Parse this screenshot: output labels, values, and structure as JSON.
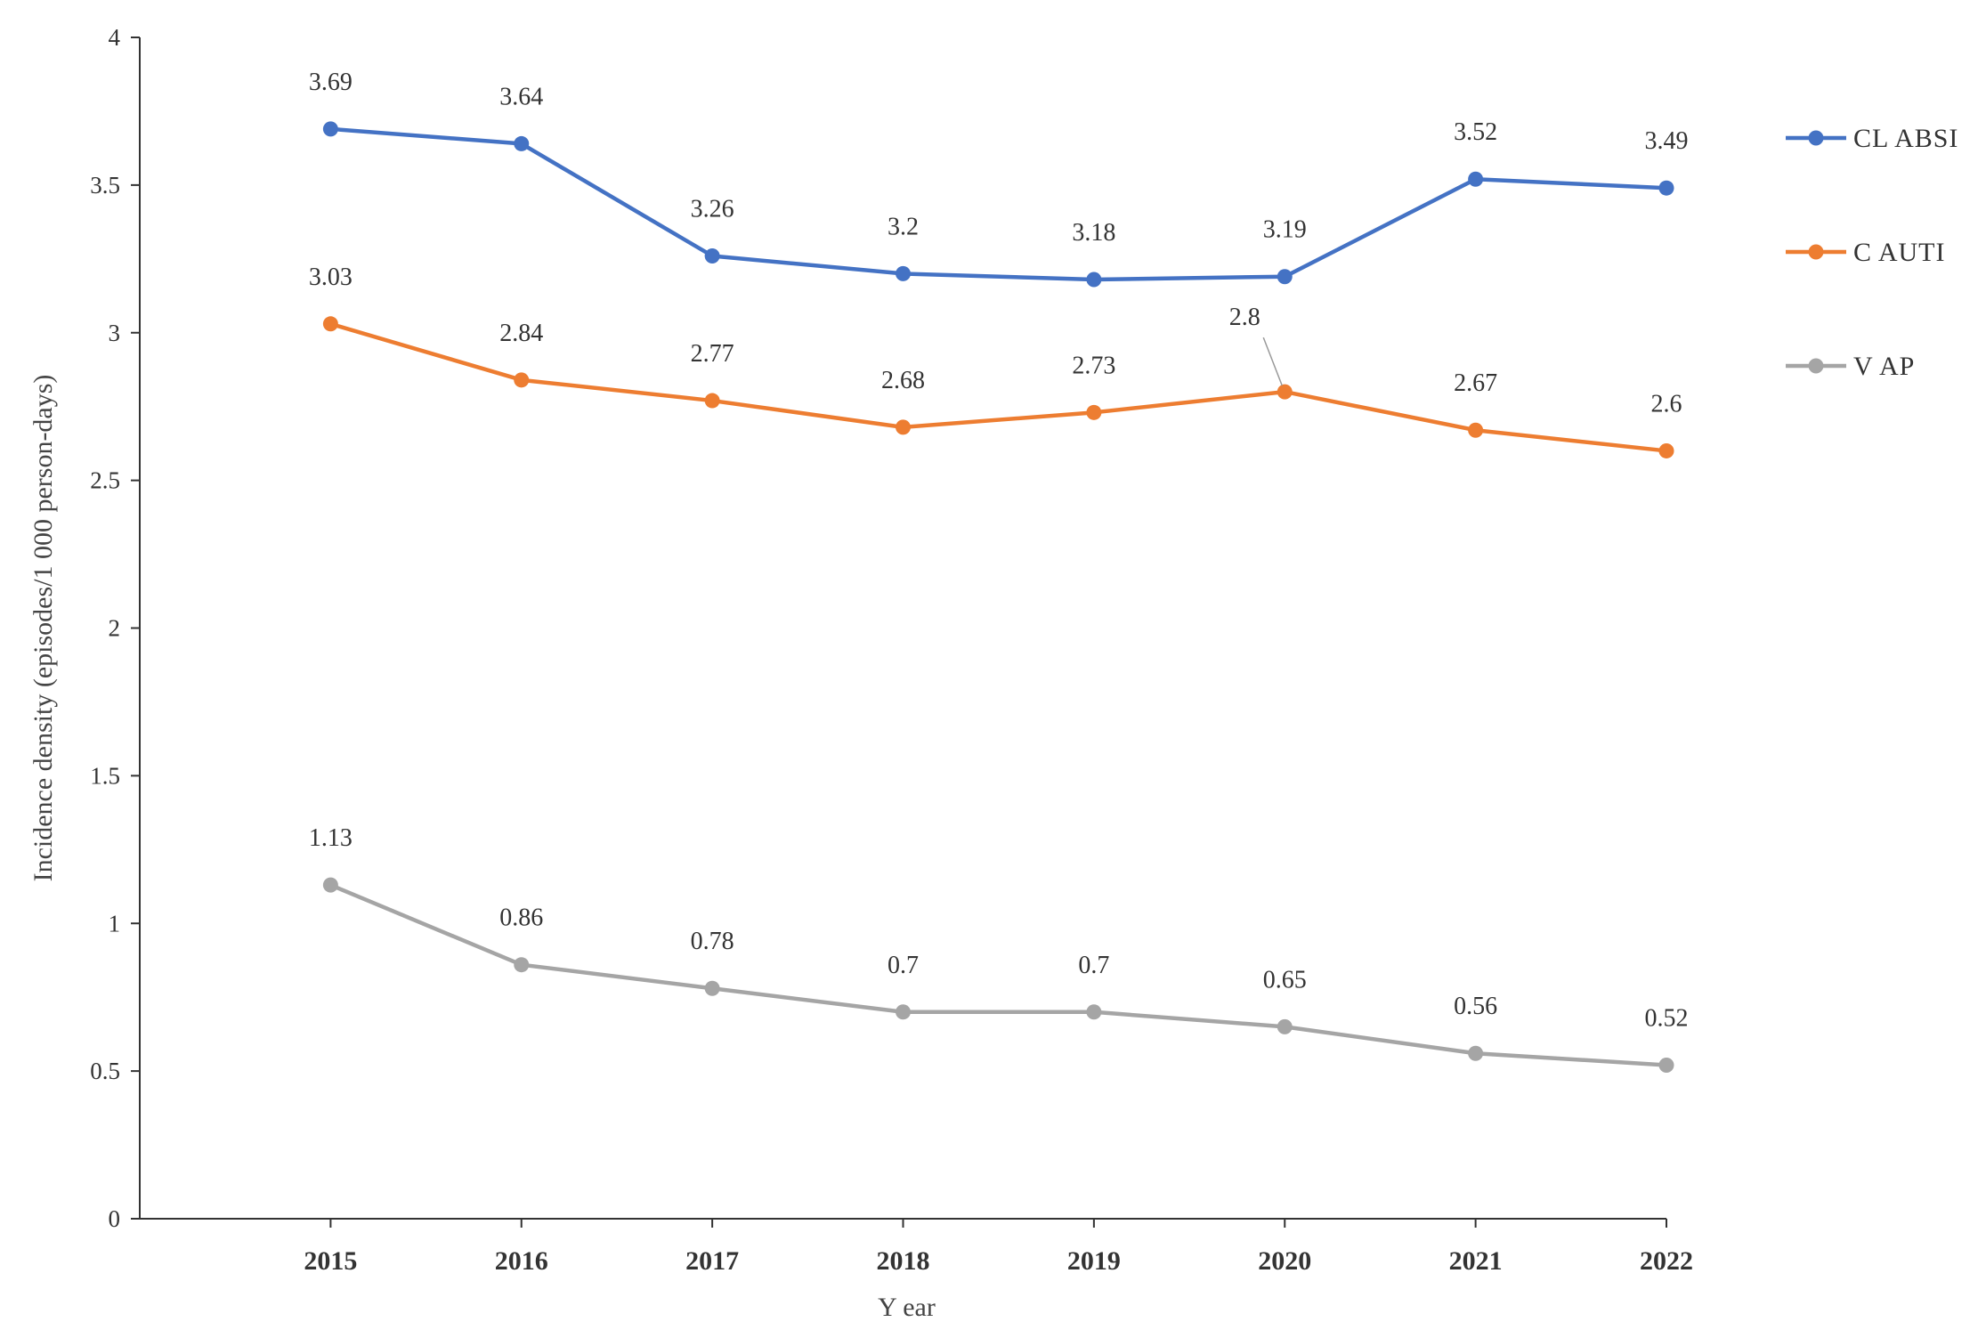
{
  "chart_data": {
    "type": "line",
    "title": "",
    "xlabel": "Y ear",
    "ylabel": "Incidence density (episodes/1 000 person-days)",
    "categories": [
      "2015",
      "2016",
      "2017",
      "2018",
      "2019",
      "2020",
      "2021",
      "2022"
    ],
    "ylim": [
      0,
      4
    ],
    "yticks": [
      0,
      0.5,
      1,
      1.5,
      2,
      2.5,
      3,
      3.5,
      4
    ],
    "ytick_labels": [
      "0",
      "0.5",
      "1",
      "1.5",
      "2",
      "2.5",
      "3",
      "3.5",
      "4"
    ],
    "grid": false,
    "legend_position": "right",
    "series": [
      {
        "name": "CLABSI",
        "legend_label": "CL ABSI",
        "color": "#4472C4",
        "values": [
          3.69,
          3.64,
          3.26,
          3.2,
          3.18,
          3.19,
          3.52,
          3.49
        ],
        "labels": [
          "3.69",
          "3.64",
          "3.26",
          "3.2",
          "3.18",
          "3.19",
          "3.52",
          "3.49"
        ]
      },
      {
        "name": "CAUTI",
        "legend_label": "C AUTI",
        "color": "#ED7D31",
        "values": [
          3.03,
          2.84,
          2.77,
          2.68,
          2.73,
          2.8,
          2.67,
          2.6
        ],
        "labels": [
          "3.03",
          "2.84",
          "2.77",
          "2.68",
          "2.73",
          "2.8",
          "2.67",
          "2.6"
        ]
      },
      {
        "name": "VAP",
        "legend_label": "V AP",
        "color": "#A5A5A5",
        "values": [
          1.13,
          0.86,
          0.78,
          0.7,
          0.7,
          0.65,
          0.56,
          0.52
        ],
        "labels": [
          "1.13",
          "0.86",
          "0.78",
          "0.7",
          "0.7",
          "0.65",
          "0.56",
          "0.52"
        ]
      }
    ]
  }
}
